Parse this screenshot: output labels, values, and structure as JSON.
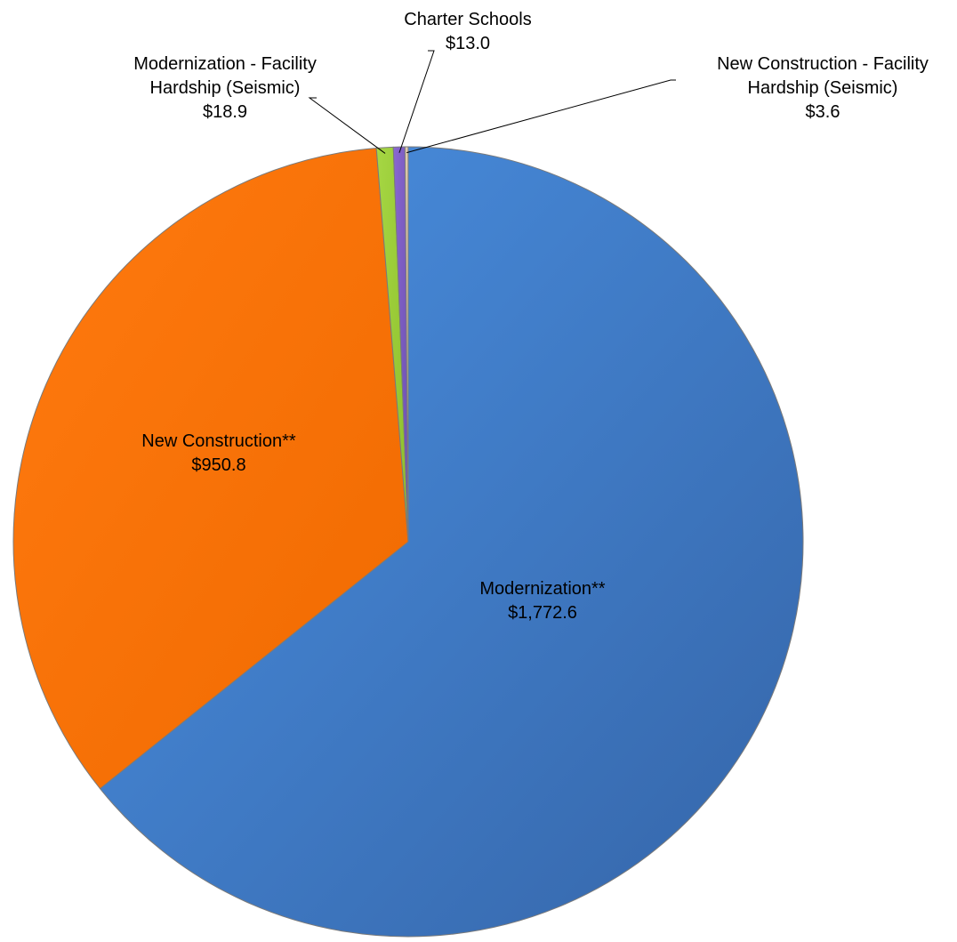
{
  "chart_data": {
    "type": "pie",
    "title": "",
    "slices": [
      {
        "label_lines": [
          "Modernization**"
        ],
        "value_label": "$1,772.6",
        "value": 1772.6,
        "color": "#3f7fd0"
      },
      {
        "label_lines": [
          "New Construction**"
        ],
        "value_label": "$950.8",
        "value": 950.8,
        "color": "#fb7005"
      },
      {
        "label_lines": [
          "Modernization - Facility",
          "Hardship (Seismic)"
        ],
        "value_label": "$18.9",
        "value": 18.9,
        "color": "#99cc33"
      },
      {
        "label_lines": [
          "Charter Schools"
        ],
        "value_label": "$13.0",
        "value": 13.0,
        "color": "#7f5fc6"
      },
      {
        "label_lines": [
          "New Construction - Facility",
          "Hardship (Seismic)"
        ],
        "value_label": "$3.6",
        "value": 3.6,
        "color": "#d9c3a6"
      }
    ],
    "start_angle": "12 o'clock",
    "direction": "clockwise",
    "legend": "none",
    "data_labels": "on slices and callouts with leader lines"
  }
}
